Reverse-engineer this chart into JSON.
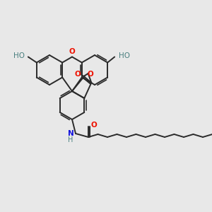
{
  "bg_color": "#e8e8e8",
  "bond_color": "#2a2a2a",
  "o_color": "#ee1100",
  "n_color": "#1111dd",
  "ho_color": "#4a8080",
  "lw": 1.4,
  "figsize": [
    3.0,
    3.0
  ],
  "dpi": 100,
  "xlim": [
    0,
    300
  ],
  "ylim": [
    0,
    300
  ]
}
